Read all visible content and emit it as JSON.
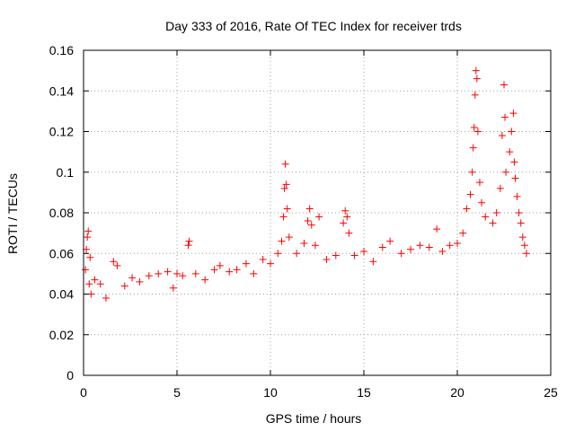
{
  "chart_data": {
    "type": "scatter",
    "title": "Day 333 of 2016, Rate Of TEC Index for receiver trds",
    "xlabel": "GPS time / hours",
    "ylabel": "ROTI / TECUs",
    "xlim": [
      0,
      25
    ],
    "ylim": [
      0,
      0.16
    ],
    "xticks": [
      0,
      5,
      10,
      15,
      20,
      25
    ],
    "yticks": [
      0,
      0.02,
      0.04,
      0.06,
      0.08,
      0.1,
      0.12,
      0.14,
      0.16
    ],
    "xtick_labels": [
      "0",
      "5",
      "10",
      "15",
      "20",
      "25"
    ],
    "ytick_labels": [
      "0",
      "0.02",
      "0.04",
      "0.06",
      "0.08",
      "0.1",
      "0.12",
      "0.14",
      "0.16"
    ],
    "grid": true,
    "marker": "+",
    "color": "#ff0000",
    "series": [
      {
        "name": "ROTI",
        "points": [
          [
            0.1,
            0.052
          ],
          [
            0.15,
            0.062
          ],
          [
            0.2,
            0.068
          ],
          [
            0.25,
            0.071
          ],
          [
            0.3,
            0.045
          ],
          [
            0.35,
            0.058
          ],
          [
            0.4,
            0.04
          ],
          [
            0.6,
            0.047
          ],
          [
            0.9,
            0.045
          ],
          [
            1.2,
            0.038
          ],
          [
            1.6,
            0.056
          ],
          [
            1.8,
            0.054
          ],
          [
            2.2,
            0.044
          ],
          [
            2.6,
            0.048
          ],
          [
            3.0,
            0.046
          ],
          [
            3.5,
            0.049
          ],
          [
            4.0,
            0.05
          ],
          [
            4.5,
            0.051
          ],
          [
            4.8,
            0.043
          ],
          [
            5.0,
            0.05
          ],
          [
            5.3,
            0.049
          ],
          [
            5.6,
            0.064
          ],
          [
            5.65,
            0.066
          ],
          [
            6.0,
            0.05
          ],
          [
            6.5,
            0.047
          ],
          [
            7.0,
            0.052
          ],
          [
            7.3,
            0.054
          ],
          [
            7.8,
            0.051
          ],
          [
            8.2,
            0.052
          ],
          [
            8.7,
            0.055
          ],
          [
            9.1,
            0.05
          ],
          [
            9.6,
            0.057
          ],
          [
            10.0,
            0.055
          ],
          [
            10.4,
            0.06
          ],
          [
            10.6,
            0.066
          ],
          [
            10.7,
            0.078
          ],
          [
            10.75,
            0.092
          ],
          [
            10.8,
            0.104
          ],
          [
            10.85,
            0.094
          ],
          [
            10.9,
            0.082
          ],
          [
            11.0,
            0.068
          ],
          [
            11.4,
            0.06
          ],
          [
            11.8,
            0.065
          ],
          [
            12.0,
            0.076
          ],
          [
            12.1,
            0.082
          ],
          [
            12.2,
            0.074
          ],
          [
            12.4,
            0.064
          ],
          [
            12.6,
            0.078
          ],
          [
            13.0,
            0.057
          ],
          [
            13.5,
            0.059
          ],
          [
            13.9,
            0.075
          ],
          [
            14.0,
            0.081
          ],
          [
            14.1,
            0.078
          ],
          [
            14.2,
            0.07
          ],
          [
            14.5,
            0.059
          ],
          [
            15.0,
            0.061
          ],
          [
            15.5,
            0.056
          ],
          [
            16.0,
            0.063
          ],
          [
            16.4,
            0.066
          ],
          [
            17.0,
            0.06
          ],
          [
            17.5,
            0.062
          ],
          [
            18.0,
            0.064
          ],
          [
            18.5,
            0.063
          ],
          [
            18.9,
            0.072
          ],
          [
            19.2,
            0.061
          ],
          [
            19.6,
            0.064
          ],
          [
            20.0,
            0.065
          ],
          [
            20.3,
            0.07
          ],
          [
            20.5,
            0.082
          ],
          [
            20.7,
            0.089
          ],
          [
            20.8,
            0.1
          ],
          [
            20.85,
            0.112
          ],
          [
            20.9,
            0.122
          ],
          [
            20.95,
            0.138
          ],
          [
            21.0,
            0.15
          ],
          [
            21.05,
            0.146
          ],
          [
            21.1,
            0.12
          ],
          [
            21.2,
            0.095
          ],
          [
            21.3,
            0.085
          ],
          [
            21.5,
            0.078
          ],
          [
            21.9,
            0.075
          ],
          [
            22.1,
            0.08
          ],
          [
            22.3,
            0.092
          ],
          [
            22.4,
            0.118
          ],
          [
            22.5,
            0.143
          ],
          [
            22.55,
            0.127
          ],
          [
            22.6,
            0.1
          ],
          [
            22.8,
            0.11
          ],
          [
            22.9,
            0.12
          ],
          [
            23.0,
            0.129
          ],
          [
            23.05,
            0.105
          ],
          [
            23.1,
            0.097
          ],
          [
            23.2,
            0.088
          ],
          [
            23.3,
            0.08
          ],
          [
            23.4,
            0.075
          ],
          [
            23.5,
            0.068
          ],
          [
            23.6,
            0.064
          ],
          [
            23.7,
            0.06
          ]
        ]
      }
    ]
  }
}
